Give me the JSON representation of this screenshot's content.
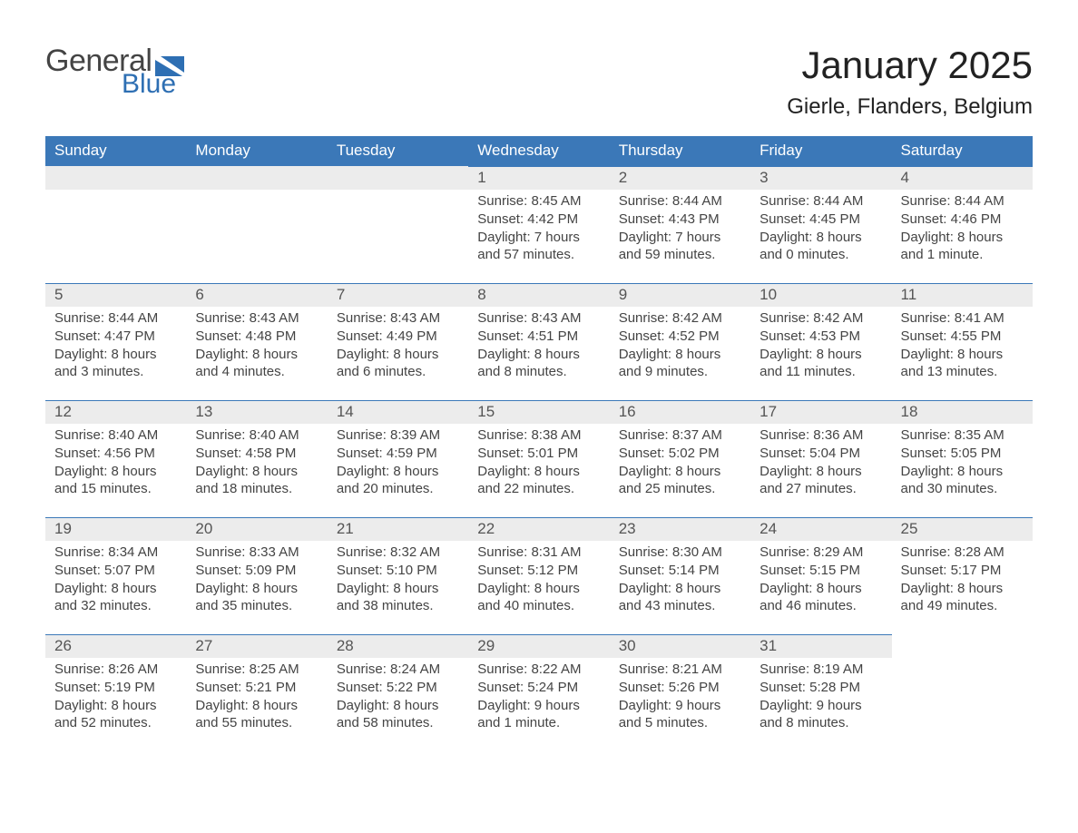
{
  "logo": {
    "word1": "General",
    "word2": "Blue"
  },
  "title": "January 2025",
  "subtitle": "Gierle, Flanders, Belgium",
  "day_headers": [
    "Sunday",
    "Monday",
    "Tuesday",
    "Wednesday",
    "Thursday",
    "Friday",
    "Saturday"
  ],
  "colors": {
    "header_blue": "#3b78b8",
    "accent_blue": "#2e6fb3",
    "light_gray": "#ececec",
    "text_gray": "#444444"
  },
  "weeks": [
    [
      {
        "n": "",
        "empty": true
      },
      {
        "n": "",
        "empty": true
      },
      {
        "n": "",
        "empty": true
      },
      {
        "n": "1",
        "sunrise": "Sunrise: 8:45 AM",
        "sunset": "Sunset: 4:42 PM",
        "daylight": "Daylight: 7 hours and 57 minutes."
      },
      {
        "n": "2",
        "sunrise": "Sunrise: 8:44 AM",
        "sunset": "Sunset: 4:43 PM",
        "daylight": "Daylight: 7 hours and 59 minutes."
      },
      {
        "n": "3",
        "sunrise": "Sunrise: 8:44 AM",
        "sunset": "Sunset: 4:45 PM",
        "daylight": "Daylight: 8 hours and 0 minutes."
      },
      {
        "n": "4",
        "sunrise": "Sunrise: 8:44 AM",
        "sunset": "Sunset: 4:46 PM",
        "daylight": "Daylight: 8 hours and 1 minute."
      }
    ],
    [
      {
        "n": "5",
        "sunrise": "Sunrise: 8:44 AM",
        "sunset": "Sunset: 4:47 PM",
        "daylight": "Daylight: 8 hours and 3 minutes."
      },
      {
        "n": "6",
        "sunrise": "Sunrise: 8:43 AM",
        "sunset": "Sunset: 4:48 PM",
        "daylight": "Daylight: 8 hours and 4 minutes."
      },
      {
        "n": "7",
        "sunrise": "Sunrise: 8:43 AM",
        "sunset": "Sunset: 4:49 PM",
        "daylight": "Daylight: 8 hours and 6 minutes."
      },
      {
        "n": "8",
        "sunrise": "Sunrise: 8:43 AM",
        "sunset": "Sunset: 4:51 PM",
        "daylight": "Daylight: 8 hours and 8 minutes."
      },
      {
        "n": "9",
        "sunrise": "Sunrise: 8:42 AM",
        "sunset": "Sunset: 4:52 PM",
        "daylight": "Daylight: 8 hours and 9 minutes."
      },
      {
        "n": "10",
        "sunrise": "Sunrise: 8:42 AM",
        "sunset": "Sunset: 4:53 PM",
        "daylight": "Daylight: 8 hours and 11 minutes."
      },
      {
        "n": "11",
        "sunrise": "Sunrise: 8:41 AM",
        "sunset": "Sunset: 4:55 PM",
        "daylight": "Daylight: 8 hours and 13 minutes."
      }
    ],
    [
      {
        "n": "12",
        "sunrise": "Sunrise: 8:40 AM",
        "sunset": "Sunset: 4:56 PM",
        "daylight": "Daylight: 8 hours and 15 minutes."
      },
      {
        "n": "13",
        "sunrise": "Sunrise: 8:40 AM",
        "sunset": "Sunset: 4:58 PM",
        "daylight": "Daylight: 8 hours and 18 minutes."
      },
      {
        "n": "14",
        "sunrise": "Sunrise: 8:39 AM",
        "sunset": "Sunset: 4:59 PM",
        "daylight": "Daylight: 8 hours and 20 minutes."
      },
      {
        "n": "15",
        "sunrise": "Sunrise: 8:38 AM",
        "sunset": "Sunset: 5:01 PM",
        "daylight": "Daylight: 8 hours and 22 minutes."
      },
      {
        "n": "16",
        "sunrise": "Sunrise: 8:37 AM",
        "sunset": "Sunset: 5:02 PM",
        "daylight": "Daylight: 8 hours and 25 minutes."
      },
      {
        "n": "17",
        "sunrise": "Sunrise: 8:36 AM",
        "sunset": "Sunset: 5:04 PM",
        "daylight": "Daylight: 8 hours and 27 minutes."
      },
      {
        "n": "18",
        "sunrise": "Sunrise: 8:35 AM",
        "sunset": "Sunset: 5:05 PM",
        "daylight": "Daylight: 8 hours and 30 minutes."
      }
    ],
    [
      {
        "n": "19",
        "sunrise": "Sunrise: 8:34 AM",
        "sunset": "Sunset: 5:07 PM",
        "daylight": "Daylight: 8 hours and 32 minutes."
      },
      {
        "n": "20",
        "sunrise": "Sunrise: 8:33 AM",
        "sunset": "Sunset: 5:09 PM",
        "daylight": "Daylight: 8 hours and 35 minutes."
      },
      {
        "n": "21",
        "sunrise": "Sunrise: 8:32 AM",
        "sunset": "Sunset: 5:10 PM",
        "daylight": "Daylight: 8 hours and 38 minutes."
      },
      {
        "n": "22",
        "sunrise": "Sunrise: 8:31 AM",
        "sunset": "Sunset: 5:12 PM",
        "daylight": "Daylight: 8 hours and 40 minutes."
      },
      {
        "n": "23",
        "sunrise": "Sunrise: 8:30 AM",
        "sunset": "Sunset: 5:14 PM",
        "daylight": "Daylight: 8 hours and 43 minutes."
      },
      {
        "n": "24",
        "sunrise": "Sunrise: 8:29 AM",
        "sunset": "Sunset: 5:15 PM",
        "daylight": "Daylight: 8 hours and 46 minutes."
      },
      {
        "n": "25",
        "sunrise": "Sunrise: 8:28 AM",
        "sunset": "Sunset: 5:17 PM",
        "daylight": "Daylight: 8 hours and 49 minutes."
      }
    ],
    [
      {
        "n": "26",
        "sunrise": "Sunrise: 8:26 AM",
        "sunset": "Sunset: 5:19 PM",
        "daylight": "Daylight: 8 hours and 52 minutes."
      },
      {
        "n": "27",
        "sunrise": "Sunrise: 8:25 AM",
        "sunset": "Sunset: 5:21 PM",
        "daylight": "Daylight: 8 hours and 55 minutes."
      },
      {
        "n": "28",
        "sunrise": "Sunrise: 8:24 AM",
        "sunset": "Sunset: 5:22 PM",
        "daylight": "Daylight: 8 hours and 58 minutes."
      },
      {
        "n": "29",
        "sunrise": "Sunrise: 8:22 AM",
        "sunset": "Sunset: 5:24 PM",
        "daylight": "Daylight: 9 hours and 1 minute."
      },
      {
        "n": "30",
        "sunrise": "Sunrise: 8:21 AM",
        "sunset": "Sunset: 5:26 PM",
        "daylight": "Daylight: 9 hours and 5 minutes."
      },
      {
        "n": "31",
        "sunrise": "Sunrise: 8:19 AM",
        "sunset": "Sunset: 5:28 PM",
        "daylight": "Daylight: 9 hours and 8 minutes."
      },
      {
        "n": "",
        "empty": true,
        "noborder": true
      }
    ]
  ]
}
